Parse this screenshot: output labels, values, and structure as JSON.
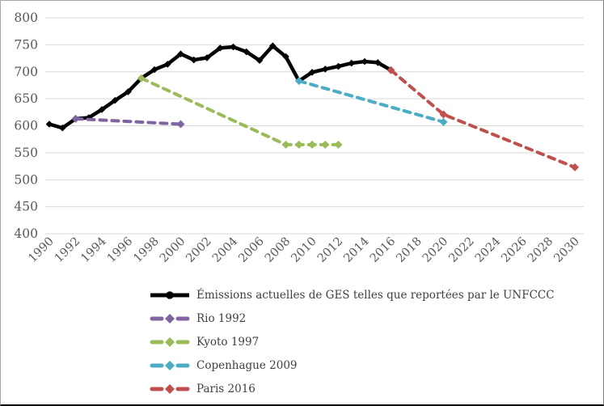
{
  "chart_data": {
    "type": "line",
    "title": "",
    "xlabel": "",
    "ylabel": "",
    "ylim": [
      400,
      800
    ],
    "y_ticks": [
      800,
      750,
      700,
      650,
      600,
      550,
      500,
      450,
      400
    ],
    "x_ticks": [
      1990,
      1992,
      1994,
      1996,
      1998,
      2000,
      2002,
      2004,
      2006,
      2008,
      2010,
      2012,
      2014,
      2016,
      2018,
      2020,
      2022,
      2024,
      2026,
      2028,
      2030
    ],
    "grid": "horizontal-only",
    "gridline_color": "#d9d9d9",
    "axis_text_color": "#595959",
    "legend_position": "bottom-left",
    "legend_text_color": "#3f3f3f",
    "series": [
      {
        "name": "Émissions actuelles de GES telles que reportées par le UNFCCC",
        "color": "#000000",
        "style": "solid",
        "marker": "diamond",
        "points": [
          [
            1990,
            603
          ],
          [
            1991,
            596
          ],
          [
            1992,
            613
          ],
          [
            1993,
            615
          ],
          [
            1994,
            630
          ],
          [
            1995,
            647
          ],
          [
            1996,
            663
          ],
          [
            1997,
            688
          ],
          [
            1998,
            704
          ],
          [
            1999,
            714
          ],
          [
            2000,
            733
          ],
          [
            2001,
            722
          ],
          [
            2002,
            726
          ],
          [
            2003,
            744
          ],
          [
            2004,
            746
          ],
          [
            2005,
            737
          ],
          [
            2006,
            721
          ],
          [
            2007,
            748
          ],
          [
            2008,
            728
          ],
          [
            2009,
            683
          ],
          [
            2010,
            699
          ],
          [
            2011,
            705
          ],
          [
            2012,
            710
          ],
          [
            2013,
            716
          ],
          [
            2014,
            719
          ],
          [
            2015,
            717
          ],
          [
            2016,
            703
          ]
        ]
      },
      {
        "name": "Rio 1992",
        "color": "#8064a2",
        "style": "dashed",
        "marker": "diamond",
        "points": [
          [
            1992,
            613
          ],
          [
            2000,
            603
          ]
        ]
      },
      {
        "name": "Kyoto 1997",
        "color": "#9bbb59",
        "style": "dashed",
        "marker": "diamond",
        "points": [
          [
            1997,
            688
          ],
          [
            2008,
            565
          ],
          [
            2009,
            565
          ],
          [
            2010,
            565
          ],
          [
            2011,
            565
          ],
          [
            2012,
            565
          ]
        ]
      },
      {
        "name": "Copenhague 2009",
        "color": "#4bacc6",
        "style": "dashed",
        "marker": "diamond",
        "points": [
          [
            2009,
            683
          ],
          [
            2020,
            607
          ]
        ]
      },
      {
        "name": "Paris 2016",
        "color": "#c0504d",
        "style": "dashed",
        "marker": "diamond",
        "points": [
          [
            2016,
            703
          ],
          [
            2020,
            621
          ],
          [
            2030,
            523
          ]
        ]
      }
    ]
  }
}
